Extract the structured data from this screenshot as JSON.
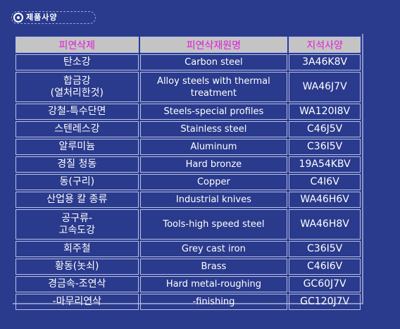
{
  "tab": {
    "label": "제품사양"
  },
  "table": {
    "headers": [
      "피연삭제",
      "피연삭재원명",
      "지석사양"
    ],
    "rows": [
      [
        "탄소강",
        "Carbon steel",
        "3A46K8V"
      ],
      [
        "합금강\n(열처리한것)",
        "Alloy steels with thermal\ntreatment",
        "WA46J7V"
      ],
      [
        "강철-특수단면",
        "Steels-special profiles",
        "WA120I8V"
      ],
      [
        "스텐레스강",
        "Stainless steel",
        "C46J5V"
      ],
      [
        "알루미늄",
        "Aluminum",
        "C36I5V"
      ],
      [
        "경질 청동",
        "Hard bronze",
        "19A54KBV"
      ],
      [
        "동(구리)",
        "Copper",
        "C4I6V"
      ],
      [
        "산업용 칼 종류",
        "Industrial knives",
        "WA46H6V"
      ],
      [
        "공구류-\n고속도강",
        "Tools-high speed steel",
        "WA46H8V"
      ],
      [
        "회주철",
        "Grey cast iron",
        "C36I5V"
      ],
      [
        "황동(놋쇠)",
        "Brass",
        "C46I6V"
      ],
      [
        "경금속-조연삭",
        "Hard metal-roughing",
        "GC60J7V"
      ],
      [
        "-마무리연삭",
        "-finishing",
        "GC120J7V"
      ]
    ]
  }
}
